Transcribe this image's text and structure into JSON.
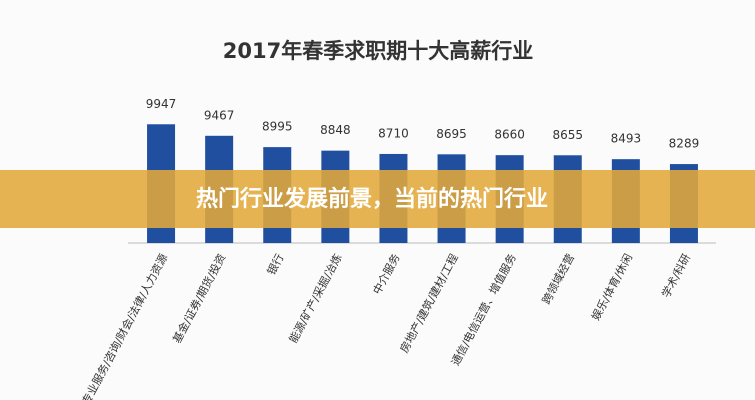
{
  "chart_data": {
    "type": "bar",
    "title": "2017年春季求职期十大高薪行业",
    "banner": "热门行业发展前景，当前的热门行业",
    "categories": [
      "专业服务/咨询/财会/法律/人力资源",
      "基金/证券/期货/投资",
      "银行",
      "能源/矿产/采掘/冶炼",
      "中介服务",
      "房地产/建筑/建材/工程",
      "通信/电信运营、增值服务",
      "跨领域经营",
      "娱乐/体育/休闲",
      "学术/科研"
    ],
    "values": [
      9947,
      9467,
      8995,
      8848,
      8710,
      8695,
      8660,
      8655,
      8493,
      8289
    ],
    "color": "#1f4f9e",
    "ylim": [
      5000,
      10000
    ]
  }
}
